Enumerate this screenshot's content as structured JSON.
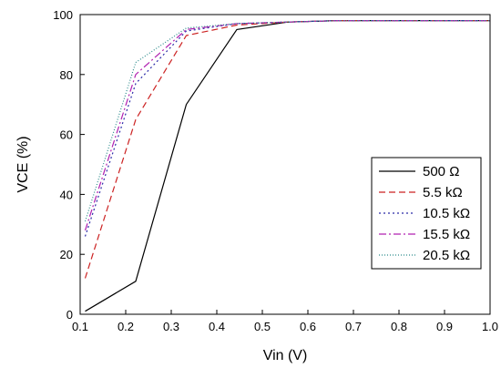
{
  "chart_data": {
    "type": "line",
    "xlabel": "Vin (V)",
    "ylabel": "VCE (%)",
    "xlim": [
      0.1,
      1.0
    ],
    "ylim": [
      0,
      100
    ],
    "xticks": [
      "0.1",
      "0.2",
      "0.3",
      "0.4",
      "0.5",
      "0.6",
      "0.7",
      "0.8",
      "0.9",
      "1.0"
    ],
    "yticks": [
      "0",
      "20",
      "40",
      "60",
      "80",
      "100"
    ],
    "grid": false,
    "legend_position": "center-right",
    "x": [
      0.111,
      0.222,
      0.333,
      0.444,
      0.556,
      0.667,
      0.778,
      0.889,
      1.0
    ],
    "series": [
      {
        "name": "500 Ω",
        "color": "#000000",
        "style": "solid",
        "values": [
          1,
          11,
          70,
          95,
          97.5,
          98,
          98,
          98,
          98
        ]
      },
      {
        "name": "5.5 kΩ",
        "color": "#cc2222",
        "style": "dashed",
        "values": [
          12,
          65,
          93,
          96.5,
          97.5,
          98,
          98,
          98,
          98
        ]
      },
      {
        "name": "10.5 kΩ",
        "color": "#2a2aa8",
        "style": "dotted",
        "values": [
          26,
          77,
          94.5,
          97,
          97.5,
          98,
          98,
          98,
          98
        ]
      },
      {
        "name": "15.5 kΩ",
        "color": "#b020b0",
        "style": "dashdot",
        "values": [
          28,
          80,
          95,
          97,
          97.5,
          98,
          98,
          98,
          98
        ]
      },
      {
        "name": "20.5 kΩ",
        "color": "#2a8a8a",
        "style": "dotted-fine",
        "values": [
          31,
          84,
          95.5,
          97,
          97.5,
          98,
          98,
          98,
          98
        ]
      }
    ]
  }
}
